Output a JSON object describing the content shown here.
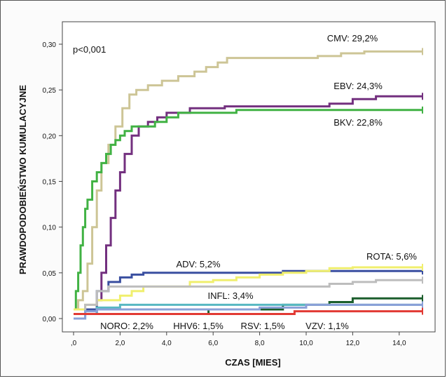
{
  "chart_data": {
    "type": "line",
    "step": true,
    "xlabel": "CZAS [MIES]",
    "ylabel": "PRAWDOPODOBIEŃSTWO KUMULACYJNE",
    "xlim": [
      0,
      15
    ],
    "ylim": [
      0,
      0.3
    ],
    "xticks": [
      ",0",
      "2,0",
      "4,0",
      "6,0",
      "8,0",
      "10,0",
      "12,0",
      "14,0"
    ],
    "yticks": [
      "0,00",
      "0,05",
      "0,10",
      "0,15",
      "0,20",
      "0,25",
      "0,30"
    ],
    "annotation": "p<0,001",
    "grid": false,
    "legend": "none (series labeled inline)",
    "series": [
      {
        "name": "CMV: 29,2%",
        "color": "#cdc596",
        "x": [
          0,
          0.2,
          0.4,
          0.6,
          0.8,
          1.0,
          1.2,
          1.5,
          1.8,
          2.1,
          2.4,
          2.7,
          3.2,
          3.8,
          4.5,
          5.2,
          5.7,
          6.2,
          6.6,
          7.5,
          8.5,
          9.5,
          10.5,
          11.5,
          12.5,
          13.5,
          15.0
        ],
        "y": [
          0.01,
          0.02,
          0.03,
          0.06,
          0.1,
          0.14,
          0.17,
          0.19,
          0.21,
          0.23,
          0.245,
          0.25,
          0.255,
          0.26,
          0.265,
          0.27,
          0.275,
          0.28,
          0.285,
          0.285,
          0.285,
          0.285,
          0.287,
          0.29,
          0.292,
          0.292,
          0.292
        ]
      },
      {
        "name": "EBV: 24,3%",
        "color": "#73307f",
        "x": [
          0,
          0.8,
          1.0,
          1.2,
          1.4,
          1.6,
          1.8,
          2.0,
          2.2,
          2.5,
          2.8,
          3.2,
          3.6,
          4.0,
          4.5,
          5.0,
          5.5,
          6.0,
          6.5,
          7.0,
          8.0,
          9.0,
          10.0,
          11.0,
          12.0,
          13.0,
          15.0
        ],
        "y": [
          0.005,
          0.005,
          0.02,
          0.05,
          0.08,
          0.11,
          0.14,
          0.16,
          0.18,
          0.2,
          0.21,
          0.215,
          0.22,
          0.225,
          0.225,
          0.23,
          0.23,
          0.23,
          0.232,
          0.232,
          0.232,
          0.232,
          0.232,
          0.235,
          0.24,
          0.243,
          0.243
        ]
      },
      {
        "name": "BKV: 22,8%",
        "color": "#41b244",
        "x": [
          0,
          0.1,
          0.2,
          0.3,
          0.4,
          0.5,
          0.6,
          0.8,
          1.0,
          1.2,
          1.4,
          1.6,
          1.8,
          2.0,
          2.2,
          2.5,
          3.0,
          3.5,
          4.0,
          4.5,
          5.0,
          6.0,
          7.0,
          8.0,
          10.0,
          12.0,
          15.0
        ],
        "y": [
          0.01,
          0.03,
          0.05,
          0.08,
          0.1,
          0.12,
          0.13,
          0.15,
          0.16,
          0.17,
          0.18,
          0.19,
          0.195,
          0.2,
          0.205,
          0.21,
          0.21,
          0.215,
          0.22,
          0.225,
          0.225,
          0.225,
          0.228,
          0.228,
          0.228,
          0.228,
          0.228
        ]
      },
      {
        "name": "ADV: 5,2%",
        "color": "#3a4fa0",
        "x": [
          0,
          0.5,
          1.0,
          1.5,
          2.0,
          2.5,
          3.0,
          4.0,
          5.0,
          6.0,
          7.0,
          8.0,
          9.0,
          10.0,
          11.0,
          12.0,
          13.0,
          15.0
        ],
        "y": [
          0.005,
          0.01,
          0.03,
          0.04,
          0.045,
          0.048,
          0.05,
          0.05,
          0.05,
          0.05,
          0.05,
          0.05,
          0.052,
          0.052,
          0.052,
          0.052,
          0.052,
          0.052
        ]
      },
      {
        "name": "ROTA: 5,6%",
        "color": "#f0ef6e",
        "x": [
          0,
          0.5,
          1.0,
          1.5,
          2.0,
          2.5,
          3.0,
          4.0,
          5.0,
          6.0,
          7.0,
          8.0,
          9.0,
          10.0,
          11.0,
          12.0,
          13.0,
          15.0
        ],
        "y": [
          0.01,
          0.015,
          0.02,
          0.02,
          0.025,
          0.03,
          0.035,
          0.035,
          0.04,
          0.042,
          0.045,
          0.048,
          0.05,
          0.052,
          0.055,
          0.056,
          0.056,
          0.056
        ]
      },
      {
        "name": "INFL: 3,4%",
        "color": "#bdbdbd",
        "x": [
          0,
          0.5,
          1.0,
          1.5,
          2.0,
          3.0,
          4.0,
          5.0,
          6.0,
          7.0,
          8.0,
          9.0,
          10.0,
          11.0,
          12.0,
          13.0,
          15.0
        ],
        "y": [
          0.005,
          0.015,
          0.03,
          0.035,
          0.035,
          0.035,
          0.035,
          0.035,
          0.035,
          0.035,
          0.035,
          0.035,
          0.035,
          0.038,
          0.04,
          0.042,
          0.042
        ]
      },
      {
        "name": "NORO: 2,2%",
        "color": "#1b5e2c",
        "x": [
          0,
          1.0,
          2.0,
          5.0,
          5.8,
          6.0,
          7.0,
          8.0,
          9.0,
          9.5,
          11.0,
          12.0,
          13.0,
          15.0
        ],
        "y": [
          0.005,
          0.005,
          0.005,
          0.005,
          0.01,
          0.01,
          0.01,
          0.01,
          0.015,
          0.015,
          0.018,
          0.022,
          0.022,
          0.022
        ]
      },
      {
        "name": "HHV6: 1,5%",
        "color": "#57b8c2",
        "x": [
          0,
          0.5,
          1.0,
          2.0,
          3.0,
          4.0,
          5.0,
          6.0,
          7.0,
          8.0,
          9.0,
          10.0,
          11.0,
          12.0,
          13.0,
          15.0
        ],
        "y": [
          0.0,
          0.005,
          0.012,
          0.015,
          0.015,
          0.015,
          0.015,
          0.015,
          0.015,
          0.015,
          0.015,
          0.015,
          0.015,
          0.015,
          0.015,
          0.015
        ]
      },
      {
        "name": "RSV: 1,5%",
        "color": "#8aa0d8",
        "x": [
          0,
          0.5,
          1.0,
          2.0,
          4.0,
          6.0,
          8.0,
          10.0,
          12.0,
          15.0
        ],
        "y": [
          0.0,
          0.008,
          0.01,
          0.01,
          0.01,
          0.01,
          0.012,
          0.015,
          0.015,
          0.015
        ]
      },
      {
        "name": "VZV: 1,1%",
        "color": "#e23a34",
        "x": [
          0,
          2.0,
          4.0,
          6.0,
          8.0,
          9.5,
          10.0,
          12.0,
          15.0
        ],
        "y": [
          0.005,
          0.005,
          0.005,
          0.005,
          0.005,
          0.008,
          0.008,
          0.008,
          0.008
        ]
      }
    ]
  }
}
